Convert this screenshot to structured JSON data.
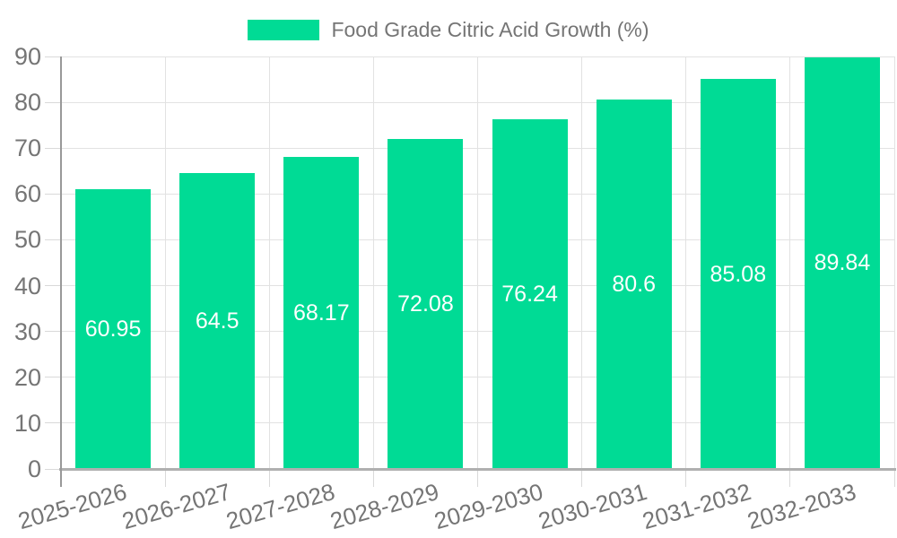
{
  "legend": {
    "label": "Food Grade Citric Acid Growth (%)"
  },
  "chart_data": {
    "type": "bar",
    "title": "Food Grade Citric Acid Growth (%)",
    "categories": [
      "2025-2026",
      "2026-2027",
      "2027-2028",
      "2028-2029",
      "2029-2030",
      "2030-2031",
      "2031-2032",
      "2032-2033"
    ],
    "series": [
      {
        "name": "Food Grade Citric Acid Growth (%)",
        "values": [
          60.95,
          64.5,
          68.17,
          72.08,
          76.24,
          80.6,
          85.08,
          89.84
        ]
      }
    ],
    "value_labels": [
      "60.95",
      "64.5",
      "68.17",
      "72.08",
      "76.24",
      "80.6",
      "85.08",
      "89.84"
    ],
    "y_ticks": [
      "0",
      "10",
      "20",
      "30",
      "40",
      "50",
      "60",
      "70",
      "80",
      "90"
    ],
    "xlabel": "",
    "ylabel": "",
    "ylim": [
      0,
      90
    ],
    "ytick_step": 10,
    "grid": true,
    "legend_position": "top-center",
    "value_label_position": "inside-center",
    "x_label_rotation_deg": -16,
    "bar_color": "#00db95",
    "value_label_color": "#ffffff",
    "axis_text_color": "#757575",
    "gridline_color": "#e2e2e2",
    "axis_line_color": "#b0b0b0"
  }
}
